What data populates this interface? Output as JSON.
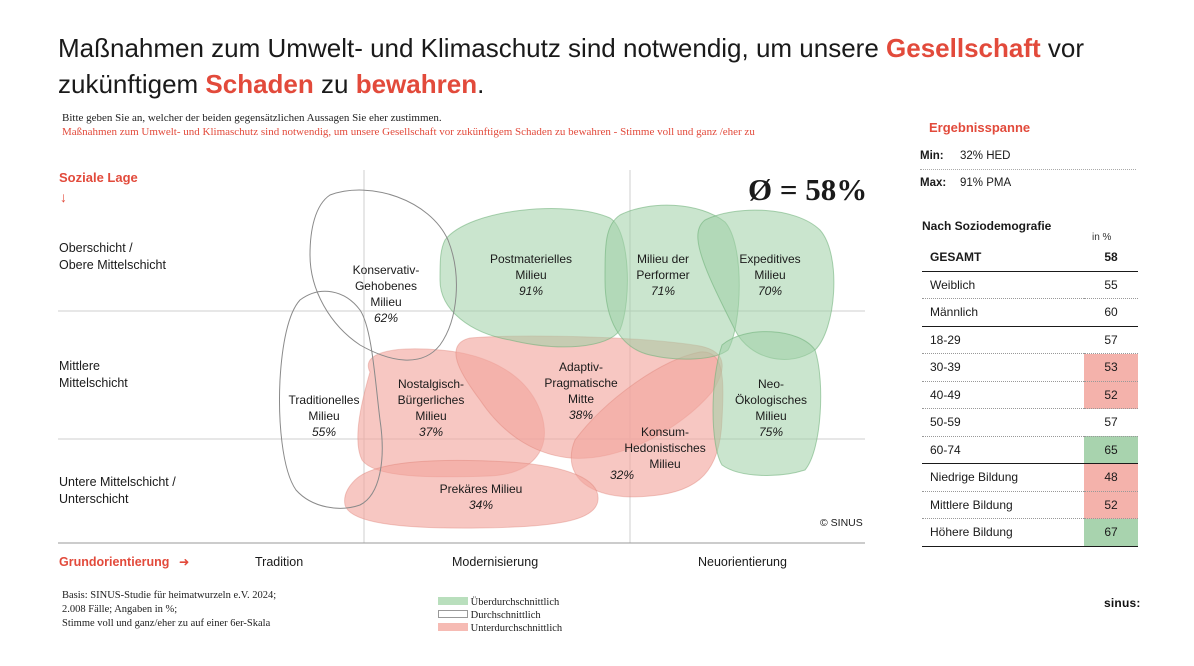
{
  "title": {
    "part1": "Maßnahmen zum Umwelt- und Klimaschutz sind notwendig, um unsere ",
    "hl1": "Gesellschaft",
    "part2": " vor zukünftigem ",
    "hl2": "Schaden",
    "part3": " zu ",
    "hl3": "bewahren",
    "part4": "."
  },
  "question": {
    "line1": "Bitte geben Sie an, welcher der beiden gegensätzlichen Aussagen Sie eher zustimmen.",
    "line2": "Maßnahmen zum Umwelt- und Klimaschutz sind notwendig, um unsere Gesellschaft vor zukünftigem Schaden zu bewahren - Stimme voll und ganz /eher zu"
  },
  "chart_data": {
    "type": "milieu-map",
    "y_axis_title": "Soziale Lage",
    "y_axis_arrow": "↓",
    "x_axis_title": "Grundorientierung",
    "x_axis_arrow": "➜",
    "rows": [
      {
        "line1": "Oberschicht /",
        "line2": "Obere Mittelschicht"
      },
      {
        "line1": "Mittlere",
        "line2": "Mittelschicht"
      },
      {
        "line1": "Untere Mittelschicht /",
        "line2": "Unterschicht"
      }
    ],
    "columns": [
      "Tradition",
      "Modernisierung",
      "Neuorientierung"
    ],
    "average_label": "Ø = 58%",
    "average": 58,
    "milieus": [
      {
        "name_lines": [
          "Konservativ-",
          "Gehobenes",
          "Milieu"
        ],
        "value": 62,
        "value_label": "62%",
        "category": "average"
      },
      {
        "name_lines": [
          "Postmaterielles",
          "Milieu"
        ],
        "value": 91,
        "value_label": "91%",
        "category": "above"
      },
      {
        "name_lines": [
          "Milieu der",
          "Performer"
        ],
        "value": 71,
        "value_label": "71%",
        "category": "above"
      },
      {
        "name_lines": [
          "Expeditives",
          "Milieu"
        ],
        "value": 70,
        "value_label": "70%",
        "category": "above"
      },
      {
        "name_lines": [
          "Traditionelles",
          "Milieu"
        ],
        "value": 55,
        "value_label": "55%",
        "category": "average"
      },
      {
        "name_lines": [
          "Nostalgisch-",
          "Bürgerliches",
          "Milieu"
        ],
        "value": 37,
        "value_label": "37%",
        "category": "below"
      },
      {
        "name_lines": [
          "Adaptiv-",
          "Pragmatische",
          "Mitte"
        ],
        "value": 38,
        "value_label": "38%",
        "category": "below"
      },
      {
        "name_lines": [
          "Neo-",
          "Ökologisches",
          "Milieu"
        ],
        "value": 75,
        "value_label": "75%",
        "category": "above"
      },
      {
        "name_lines": [
          "Konsum-",
          "Hedonistisches",
          "Milieu"
        ],
        "value": 32,
        "value_label": "32%",
        "category": "below"
      },
      {
        "name_lines": [
          "Prekäres Milieu"
        ],
        "value": 34,
        "value_label": "34%",
        "category": "below"
      }
    ],
    "copyright": "© SINUS"
  },
  "legend": {
    "above": "Überdurchschnittlich",
    "average": "Durchschnittlich",
    "below": "Unterdurchschnittlich"
  },
  "basis": {
    "line1": "Basis: SINUS-Studie für heimatwurzeln e.V. 2024;",
    "line2": "2.008 Fälle; Angaben in %;",
    "line3": "Stimme voll und ganz/eher zu auf einer 6er-Skala"
  },
  "sidebar": {
    "range_title": "Ergebnisspanne",
    "min_label": "Min:",
    "min_value": "32% HED",
    "max_label": "Max:",
    "max_value": "91% PMA",
    "socio_title": "Nach Soziodemografie",
    "unit": "in %",
    "rows": [
      {
        "label": "GESAMT",
        "value": "58",
        "status": "none"
      },
      {
        "label": "Weiblich",
        "value": "55",
        "status": "none"
      },
      {
        "label": "Männlich",
        "value": "60",
        "status": "none"
      },
      {
        "label": "18-29",
        "value": "57",
        "status": "none"
      },
      {
        "label": "30-39",
        "value": "53",
        "status": "below"
      },
      {
        "label": "40-49",
        "value": "52",
        "status": "below"
      },
      {
        "label": "50-59",
        "value": "57",
        "status": "none"
      },
      {
        "label": "60-74",
        "value": "65",
        "status": "above"
      },
      {
        "label": "Niedrige Bildung",
        "value": "48",
        "status": "below"
      },
      {
        "label": "Mittlere Bildung",
        "value": "52",
        "status": "below"
      },
      {
        "label": "Höhere Bildung",
        "value": "67",
        "status": "above"
      }
    ]
  },
  "logo": "sinus:",
  "colors": {
    "accent": "#e24a3b",
    "above_fill": "#9fd0a5",
    "above_stroke": "#6cae76",
    "below_fill": "#f2a49c",
    "below_stroke": "#d9786d",
    "avg_stroke": "#8a8a8a"
  }
}
